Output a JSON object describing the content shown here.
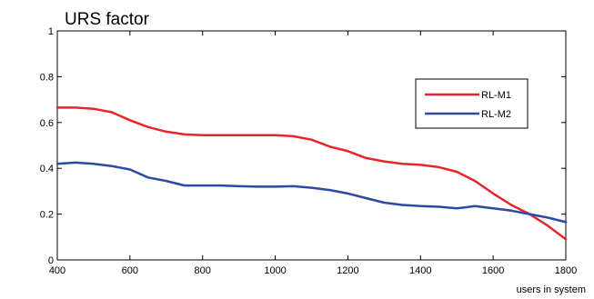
{
  "chart_data": {
    "type": "line",
    "title": "URS factor",
    "xlabel": "users in system",
    "ylabel": "",
    "xlim": [
      400,
      1800
    ],
    "ylim": [
      0,
      1
    ],
    "xticks": [
      400,
      600,
      800,
      1000,
      1200,
      1400,
      1600,
      1800
    ],
    "yticks": [
      0,
      0.2,
      0.4,
      0.6,
      0.8,
      1
    ],
    "ytick_labels": [
      "0",
      "0.2",
      "0.4",
      "0.6",
      "0.8",
      "1"
    ],
    "grid": false,
    "legend_position": "upper-right",
    "series": [
      {
        "name": "RL-M1",
        "color": "#e8252a",
        "x": [
          400,
          450,
          500,
          550,
          600,
          650,
          700,
          750,
          800,
          850,
          900,
          950,
          1000,
          1050,
          1100,
          1150,
          1200,
          1250,
          1300,
          1350,
          1400,
          1450,
          1500,
          1550,
          1600,
          1650,
          1700,
          1750,
          1800
        ],
        "y": [
          0.665,
          0.665,
          0.66,
          0.645,
          0.61,
          0.58,
          0.56,
          0.548,
          0.545,
          0.545,
          0.545,
          0.545,
          0.545,
          0.54,
          0.525,
          0.495,
          0.475,
          0.445,
          0.43,
          0.42,
          0.415,
          0.405,
          0.385,
          0.345,
          0.29,
          0.24,
          0.2,
          0.15,
          0.09
        ]
      },
      {
        "name": "RL-M2",
        "color": "#2d49a3",
        "x": [
          400,
          450,
          500,
          550,
          600,
          650,
          700,
          750,
          800,
          850,
          900,
          950,
          1000,
          1050,
          1100,
          1150,
          1200,
          1250,
          1300,
          1350,
          1400,
          1450,
          1500,
          1550,
          1600,
          1650,
          1700,
          1750,
          1800
        ],
        "y": [
          0.42,
          0.425,
          0.42,
          0.41,
          0.395,
          0.36,
          0.345,
          0.325,
          0.325,
          0.325,
          0.322,
          0.32,
          0.32,
          0.322,
          0.315,
          0.305,
          0.29,
          0.27,
          0.25,
          0.24,
          0.235,
          0.232,
          0.225,
          0.235,
          0.225,
          0.215,
          0.2,
          0.185,
          0.165
        ]
      }
    ]
  }
}
